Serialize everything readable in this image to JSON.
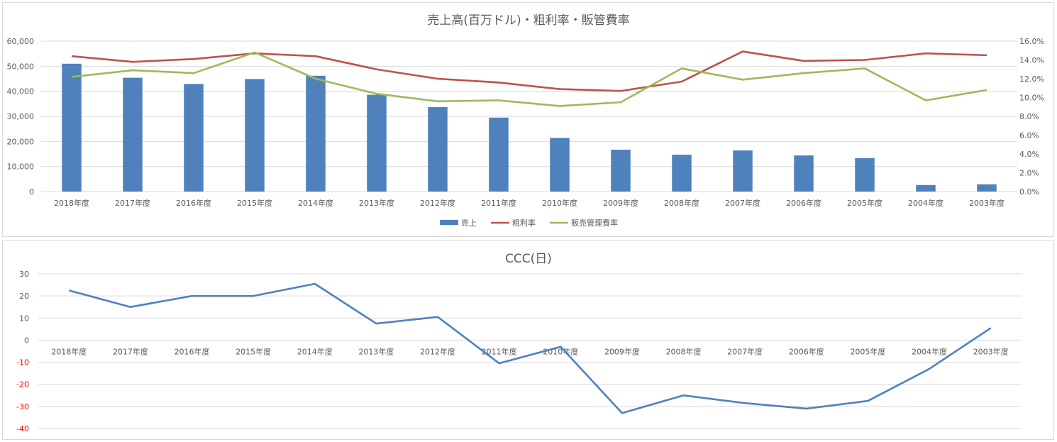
{
  "chart_data": [
    {
      "type": "bar+line",
      "title": "売上高(百万ドル)・粗利率・販管費率",
      "categories": [
        "2018年度",
        "2017年度",
        "2016年度",
        "2015年度",
        "2014年度",
        "2013年度",
        "2012年度",
        "2011年度",
        "2010年度",
        "2009年度",
        "2008年度",
        "2007年度",
        "2006年度",
        "2005年度",
        "2004年度",
        "2003年度"
      ],
      "y_left": {
        "min": 0,
        "max": 60000,
        "ticks": [
          "0",
          "10,000",
          "20,000",
          "30,000",
          "40,000",
          "50,000",
          "60,000"
        ]
      },
      "y_right": {
        "min": 0,
        "max": 0.16,
        "ticks": [
          "0.0%",
          "2.0%",
          "4.0%",
          "6.0%",
          "8.0%",
          "10.0%",
          "12.0%",
          "14.0%",
          "16.0%"
        ]
      },
      "series": [
        {
          "name": "売上",
          "kind": "bar",
          "axis": "left",
          "color": "#4f81bd",
          "values": [
            51000,
            45400,
            42900,
            44900,
            46200,
            38600,
            33700,
            29500,
            21400,
            16700,
            14700,
            16400,
            14400,
            13300,
            2600,
            2900
          ]
        },
        {
          "name": "粗利率",
          "kind": "line",
          "axis": "right",
          "color": "#c0504d",
          "values": [
            0.144,
            0.138,
            0.141,
            0.147,
            0.144,
            0.13,
            0.12,
            0.116,
            0.109,
            0.107,
            0.117,
            0.149,
            0.139,
            0.14,
            0.147,
            0.145
          ]
        },
        {
          "name": "販売管理費率",
          "kind": "line",
          "axis": "right",
          "color": "#9bbb59",
          "values": [
            0.122,
            0.129,
            0.126,
            0.148,
            0.12,
            0.104,
            0.096,
            0.097,
            0.091,
            0.095,
            0.131,
            0.119,
            0.126,
            0.131,
            0.097,
            0.108
          ]
        }
      ],
      "legend": "bottom",
      "grid": true
    },
    {
      "type": "line",
      "title": "CCC(日)",
      "categories": [
        "2018年度",
        "2017年度",
        "2016年度",
        "2015年度",
        "2014年度",
        "2013年度",
        "2012年度",
        "2011年度",
        "2010年度",
        "2009年度",
        "2008年度",
        "2007年度",
        "2006年度",
        "2005年度",
        "2004年度",
        "2003年度"
      ],
      "y": {
        "min": -40,
        "max": 30,
        "ticks": [
          "-40",
          "-30",
          "-20",
          "-10",
          "0",
          "10",
          "20",
          "30"
        ]
      },
      "negative_tick_color": "#ff0000",
      "series": [
        {
          "name": "",
          "color": "#4f81bd",
          "values": [
            22.5,
            15,
            20,
            20,
            25.5,
            7.5,
            10.5,
            -10.5,
            -3,
            -33,
            -25,
            -28.5,
            -31,
            -27.5,
            -13,
            5.5
          ]
        }
      ],
      "legend": "none",
      "grid": true
    }
  ]
}
